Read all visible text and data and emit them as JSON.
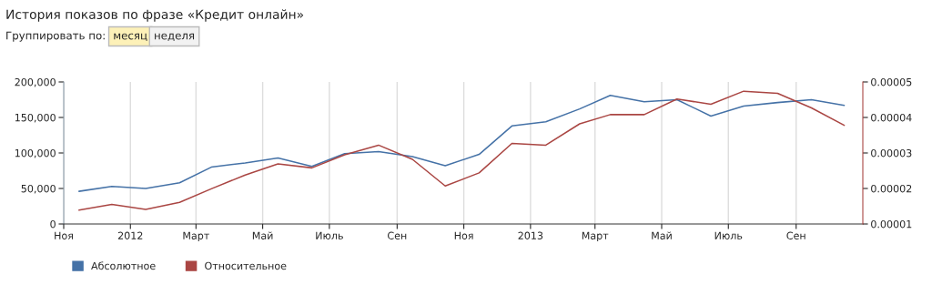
{
  "chart_data": {
    "type": "line",
    "title": "История показов по фразе «Кредит онлайн»",
    "annotations": [
      "Группировать по:",
      "месяц",
      "неделя"
    ],
    "x": [
      "2011-11-15",
      "2011-12-15",
      "2012-01-15",
      "2012-02-15",
      "2012-03-15",
      "2012-04-15",
      "2012-05-15",
      "2012-06-15",
      "2012-07-15",
      "2012-08-15",
      "2012-09-15",
      "2012-10-15",
      "2012-11-15",
      "2012-12-15",
      "2013-01-15",
      "2013-02-15",
      "2013-03-15",
      "2013-04-15",
      "2013-05-15",
      "2013-06-15",
      "2013-07-15",
      "2013-08-15",
      "2013-09-15",
      "2013-10-15"
    ],
    "series": [
      {
        "name": "Абсолютное",
        "color": "#4572a7",
        "values": [
          46000,
          53000,
          50000,
          58000,
          80000,
          86000,
          93000,
          81000,
          99000,
          102000,
          95000,
          82000,
          98000,
          138000,
          144000,
          162000,
          181000,
          172000,
          175000,
          152000,
          166000,
          171000,
          175000,
          167000
        ]
      },
      {
        "name": "Относительное",
        "color": "#aa4643",
        "axis": "y2",
        "values": [
          1.39e-05,
          1.55e-05,
          1.41e-05,
          1.61e-05,
          1.99e-05,
          2.38e-05,
          2.69e-05,
          2.58e-05,
          2.95e-05,
          3.22e-05,
          2.82e-05,
          2.07e-05,
          2.44e-05,
          3.27e-05,
          3.22e-05,
          3.82e-05,
          4.08e-05,
          4.08e-05,
          4.52e-05,
          4.37e-05,
          4.74e-05,
          4.68e-05,
          4.27e-05,
          3.78e-05
        ]
      }
    ],
    "xlim": [
      "2011-11-01",
      "2013-11-01"
    ],
    "xticks": [
      {
        "value": "2011-11-01",
        "label": "Ноя"
      },
      {
        "value": "2012-01-01",
        "label": "2012"
      },
      {
        "value": "2012-03-01",
        "label": "Март"
      },
      {
        "value": "2012-05-01",
        "label": "Май"
      },
      {
        "value": "2012-07-01",
        "label": "Июль"
      },
      {
        "value": "2012-09-01",
        "label": "Сен"
      },
      {
        "value": "2012-11-01",
        "label": "Ноя"
      },
      {
        "value": "2013-01-01",
        "label": "2013"
      },
      {
        "value": "2013-03-01",
        "label": "Март"
      },
      {
        "value": "2013-05-01",
        "label": "Май"
      },
      {
        "value": "2013-07-01",
        "label": "Июль"
      },
      {
        "value": "2013-09-01",
        "label": "Сен"
      }
    ],
    "ylim": [
      0,
      200000
    ],
    "yticks": [
      0,
      {
        "value": 50000,
        "label": "50,000"
      },
      {
        "value": 100000,
        "label": "100,000"
      },
      {
        "value": 150000,
        "label": "150,000"
      },
      {
        "value": 200000,
        "label": "200,000"
      }
    ],
    "y2lim": [
      1e-05,
      5e-05
    ],
    "y2ticks": [
      {
        "value": 1e-05,
        "label": "0.00001"
      },
      {
        "value": 2e-05,
        "label": "0.00002"
      },
      {
        "value": 3e-05,
        "label": "0.00003"
      },
      {
        "value": 4e-05,
        "label": "0.00004"
      },
      {
        "value": 5e-05,
        "label": "0.00005"
      }
    ],
    "grid": "x",
    "legend": "bottom left",
    "marker": "none",
    "line_style": "solid"
  }
}
